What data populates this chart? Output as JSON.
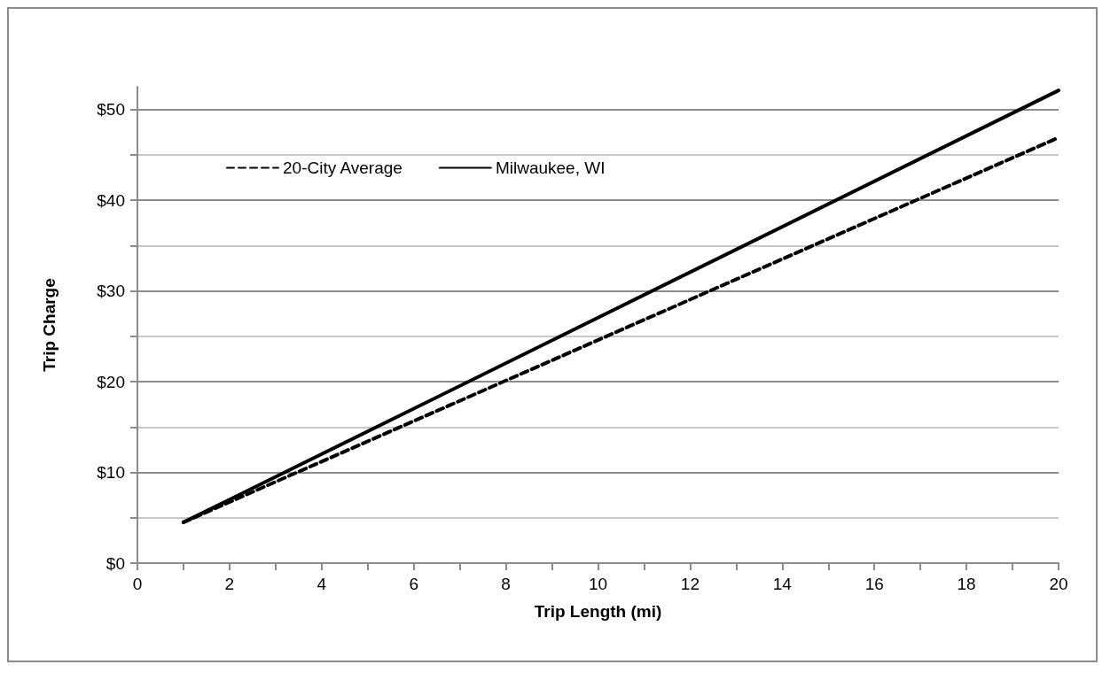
{
  "chart_data": {
    "type": "line",
    "xlabel": "Trip Length (mi)",
    "ylabel": "Trip Charge",
    "series": [
      {
        "name": "20-City Average",
        "color": "#000000",
        "line_style": "dashed",
        "values": [
          4.5,
          46.9
        ]
      },
      {
        "name": "Milwaukee, WI",
        "color": "#000000",
        "line_style": "solid",
        "values": [
          4.5,
          52.1
        ]
      }
    ],
    "x": [
      1,
      20
    ],
    "xlim": [
      0,
      20
    ],
    "xticks": [
      0,
      {
        "value": 1,
        "label": null
      },
      2,
      {
        "value": 3,
        "label": null
      },
      4,
      {
        "value": 5,
        "label": null
      },
      6,
      {
        "value": 7,
        "label": null
      },
      8,
      {
        "value": 9,
        "label": null
      },
      10,
      {
        "value": 11,
        "label": null
      },
      12,
      {
        "value": 13,
        "label": null
      },
      14,
      {
        "value": 15,
        "label": null
      },
      16,
      {
        "value": 17,
        "label": null
      },
      18,
      {
        "value": 19,
        "label": null
      },
      20
    ],
    "ylim": [
      0,
      52.5
    ],
    "yticks": [
      {
        "value": 0,
        "label": "$0"
      },
      {
        "value": 5,
        "label": null
      },
      {
        "value": 10,
        "label": "$10"
      },
      {
        "value": 15,
        "label": null
      },
      {
        "value": 20,
        "label": "$20"
      },
      {
        "value": 25,
        "label": null
      },
      {
        "value": 30,
        "label": "$30"
      },
      {
        "value": 35,
        "label": null
      },
      {
        "value": 40,
        "label": "$40"
      },
      {
        "value": 45,
        "label": null
      },
      {
        "value": 50,
        "label": "$50"
      }
    ],
    "grid": "y",
    "legend": "top left",
    "marker": "none"
  }
}
